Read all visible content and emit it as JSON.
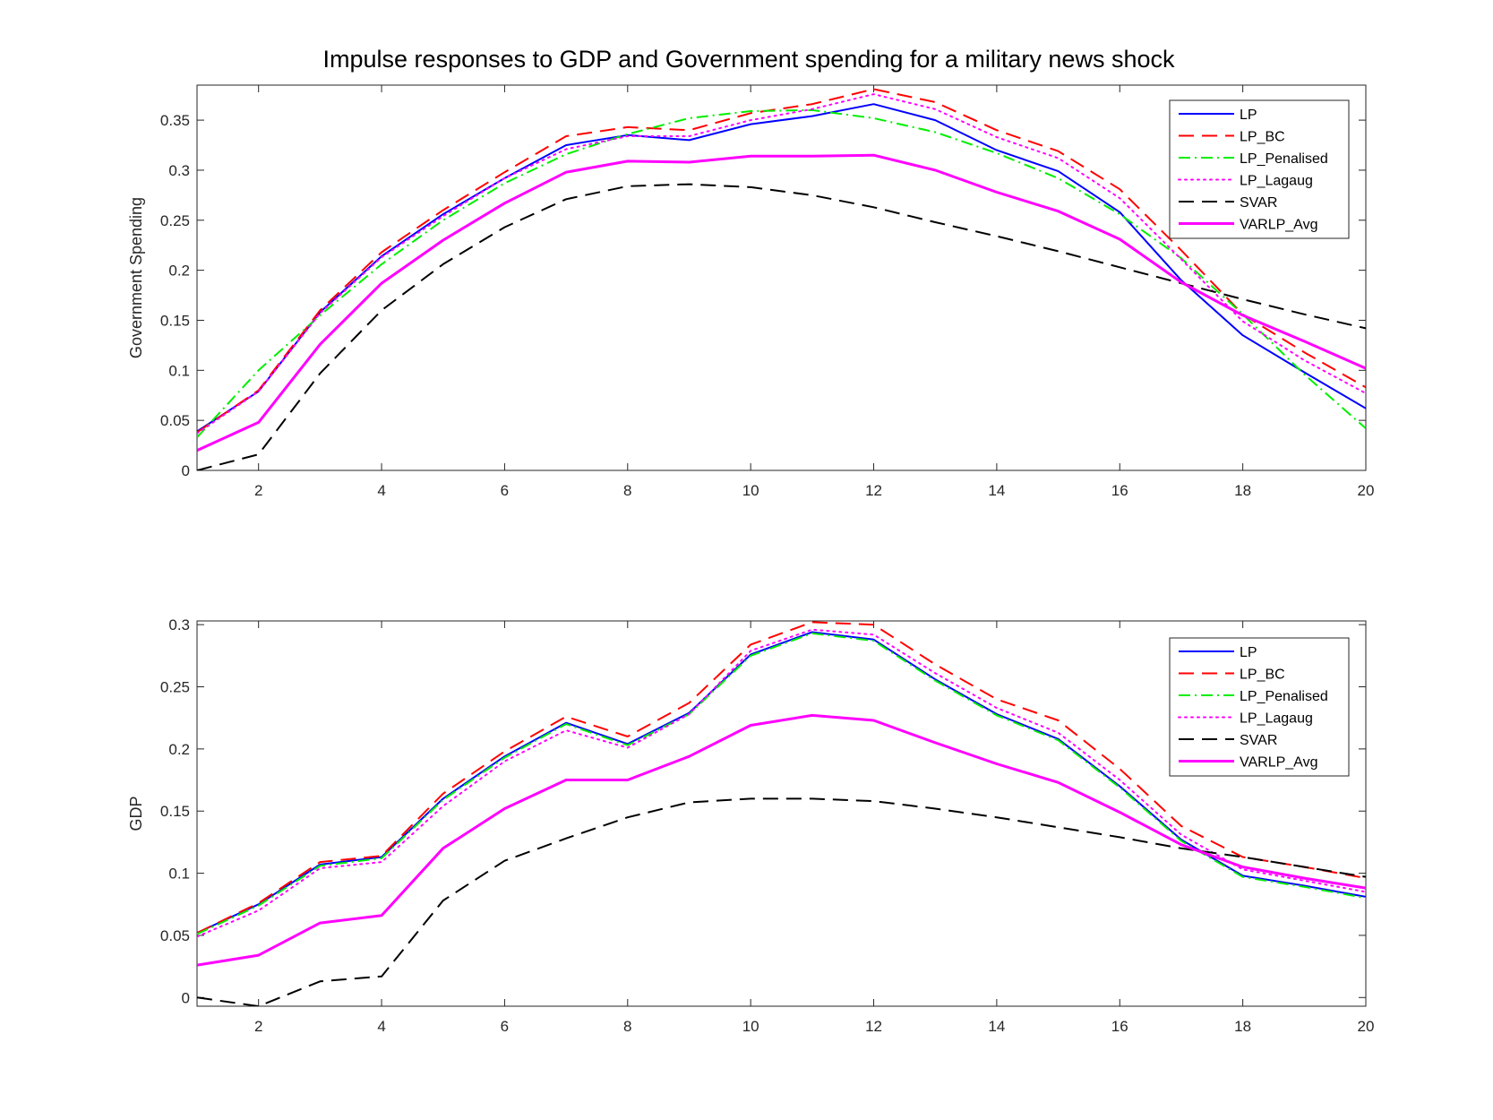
{
  "title": "Impulse responses to GDP and Government spending for a military news shock",
  "chart_data": [
    {
      "type": "line",
      "ylabel": "Government Spending",
      "xlabel": "",
      "xlim": [
        1,
        20
      ],
      "ylim": [
        0,
        0.385
      ],
      "xticks": [
        2,
        4,
        6,
        8,
        10,
        12,
        14,
        16,
        18,
        20
      ],
      "xtick_labels": [
        "2",
        "4",
        "6",
        "8",
        "10",
        "12",
        "14",
        "16",
        "18",
        "20"
      ],
      "yticks": [
        0,
        0.05,
        0.1,
        0.15,
        0.2,
        0.25,
        0.3,
        0.35
      ],
      "ytick_labels": [
        "0",
        "0.05",
        "0.1",
        "0.15",
        "0.2",
        "0.25",
        "0.3",
        "0.35"
      ],
      "grid": false,
      "legend": "top-right",
      "x": [
        1,
        2,
        3,
        4,
        5,
        6,
        7,
        8,
        9,
        10,
        11,
        12,
        13,
        14,
        15,
        16,
        17,
        18,
        19,
        20
      ],
      "series": [
        {
          "name": "LP",
          "color": "#0000ff",
          "dash": "solid",
          "width": 2,
          "values": [
            0.039,
            0.079,
            0.158,
            0.214,
            0.256,
            0.292,
            0.325,
            0.335,
            0.33,
            0.346,
            0.354,
            0.366,
            0.35,
            0.32,
            0.299,
            0.258,
            0.19,
            0.135,
            0.098,
            0.062
          ]
        },
        {
          "name": "LP_BC",
          "color": "#ff0000",
          "dash": "dashed",
          "width": 2,
          "values": [
            0.038,
            0.08,
            0.16,
            0.218,
            0.26,
            0.298,
            0.334,
            0.343,
            0.34,
            0.357,
            0.366,
            0.381,
            0.368,
            0.34,
            0.319,
            0.281,
            0.22,
            0.156,
            0.118,
            0.083
          ]
        },
        {
          "name": "LP_Penalised",
          "color": "#00ee00",
          "dash": "dashdot",
          "width": 2,
          "values": [
            0.033,
            0.1,
            0.155,
            0.206,
            0.25,
            0.287,
            0.316,
            0.336,
            0.352,
            0.359,
            0.36,
            0.352,
            0.338,
            0.317,
            0.292,
            0.256,
            0.212,
            0.156,
            0.096,
            0.042
          ]
        },
        {
          "name": "LP_Lagaug",
          "color": "#ff00ff",
          "dash": "dotted",
          "width": 2,
          "values": [
            0.037,
            0.079,
            0.157,
            0.213,
            0.254,
            0.292,
            0.321,
            0.334,
            0.334,
            0.35,
            0.361,
            0.376,
            0.361,
            0.333,
            0.312,
            0.272,
            0.211,
            0.149,
            0.11,
            0.077
          ]
        },
        {
          "name": "SVAR",
          "color": "#000000",
          "dash": "longdash",
          "width": 2,
          "values": [
            0.0,
            0.016,
            0.097,
            0.16,
            0.206,
            0.243,
            0.271,
            0.284,
            0.286,
            0.283,
            0.275,
            0.263,
            0.248,
            0.234,
            0.219,
            0.203,
            0.187,
            0.171,
            0.156,
            0.142
          ]
        },
        {
          "name": "VARLP_Avg",
          "color": "#ff00ff",
          "dash": "solid",
          "width": 3,
          "values": [
            0.02,
            0.048,
            0.126,
            0.187,
            0.23,
            0.267,
            0.298,
            0.309,
            0.308,
            0.314,
            0.314,
            0.315,
            0.3,
            0.278,
            0.259,
            0.231,
            0.188,
            0.155,
            0.129,
            0.102
          ]
        }
      ]
    },
    {
      "type": "line",
      "ylabel": "GDP",
      "xlabel": "",
      "xlim": [
        1,
        20
      ],
      "ylim": [
        -0.007,
        0.303
      ],
      "xticks": [
        2,
        4,
        6,
        8,
        10,
        12,
        14,
        16,
        18,
        20
      ],
      "xtick_labels": [
        "2",
        "4",
        "6",
        "8",
        "10",
        "12",
        "14",
        "16",
        "18",
        "20"
      ],
      "yticks": [
        0,
        0.05,
        0.1,
        0.15,
        0.2,
        0.25,
        0.3
      ],
      "ytick_labels": [
        "0",
        "0.05",
        "0.1",
        "0.15",
        "0.2",
        "0.25",
        "0.3"
      ],
      "grid": false,
      "legend": "top-right",
      "x": [
        1,
        2,
        3,
        4,
        5,
        6,
        7,
        8,
        9,
        10,
        11,
        12,
        13,
        14,
        15,
        16,
        17,
        18,
        19,
        20
      ],
      "series": [
        {
          "name": "LP",
          "color": "#0000ff",
          "dash": "solid",
          "width": 2,
          "values": [
            0.052,
            0.075,
            0.107,
            0.113,
            0.16,
            0.194,
            0.221,
            0.204,
            0.229,
            0.276,
            0.294,
            0.288,
            0.256,
            0.228,
            0.208,
            0.17,
            0.127,
            0.098,
            0.09,
            0.081
          ]
        },
        {
          "name": "LP_BC",
          "color": "#ff0000",
          "dash": "dashed",
          "width": 2,
          "values": [
            0.052,
            0.076,
            0.109,
            0.114,
            0.164,
            0.198,
            0.226,
            0.21,
            0.237,
            0.284,
            0.302,
            0.3,
            0.268,
            0.24,
            0.223,
            0.184,
            0.138,
            0.113,
            0.105,
            0.096
          ]
        },
        {
          "name": "LP_Penalised",
          "color": "#00ee00",
          "dash": "dashdot",
          "width": 2,
          "values": [
            0.051,
            0.074,
            0.106,
            0.112,
            0.159,
            0.193,
            0.22,
            0.203,
            0.228,
            0.275,
            0.293,
            0.287,
            0.255,
            0.227,
            0.207,
            0.169,
            0.126,
            0.097,
            0.089,
            0.08
          ]
        },
        {
          "name": "LP_Lagaug",
          "color": "#ff00ff",
          "dash": "dotted",
          "width": 2,
          "values": [
            0.049,
            0.07,
            0.104,
            0.109,
            0.154,
            0.19,
            0.215,
            0.201,
            0.228,
            0.279,
            0.296,
            0.292,
            0.261,
            0.233,
            0.213,
            0.175,
            0.131,
            0.103,
            0.094,
            0.085
          ]
        },
        {
          "name": "SVAR",
          "color": "#000000",
          "dash": "longdash",
          "width": 2,
          "values": [
            0.0,
            -0.007,
            0.013,
            0.017,
            0.078,
            0.11,
            0.128,
            0.145,
            0.157,
            0.16,
            0.16,
            0.158,
            0.152,
            0.145,
            0.137,
            0.129,
            0.12,
            0.113,
            0.105,
            0.097
          ]
        },
        {
          "name": "VARLP_Avg",
          "color": "#ff00ff",
          "dash": "solid",
          "width": 3,
          "values": [
            0.026,
            0.034,
            0.06,
            0.066,
            0.12,
            0.152,
            0.175,
            0.175,
            0.194,
            0.219,
            0.227,
            0.223,
            0.205,
            0.188,
            0.173,
            0.149,
            0.123,
            0.105,
            0.096,
            0.088
          ]
        }
      ]
    }
  ]
}
